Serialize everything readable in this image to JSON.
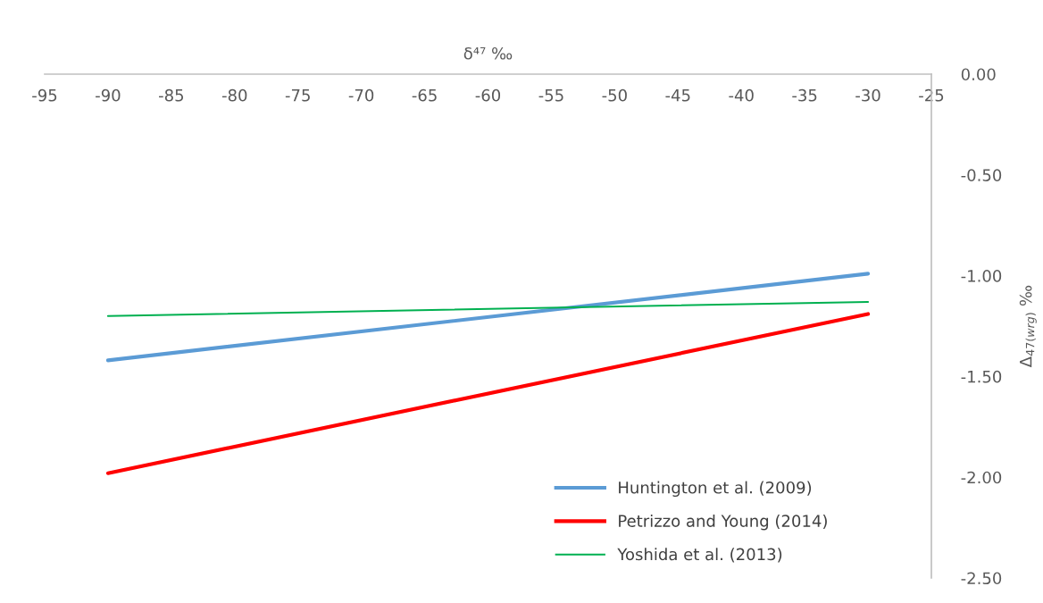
{
  "chart_data": {
    "type": "line",
    "xlabel": "δ⁴⁷ ‰",
    "ylabel": "Δ$_{47(wrg)}$ ‰",
    "xlim": [
      -95,
      -25
    ],
    "xticks": [
      -95,
      -90,
      -85,
      -80,
      -75,
      -70,
      -65,
      -60,
      -55,
      -50,
      -45,
      -40,
      -35,
      -30,
      -25
    ],
    "ylim": [
      -2.5,
      0
    ],
    "yticks": [
      {
        "value": 0,
        "label": "0.00"
      },
      {
        "value": -0.5,
        "label": "-0.50"
      },
      {
        "value": -1,
        "label": "-1.00"
      },
      {
        "value": -1.5,
        "label": "-1.50"
      },
      {
        "value": -2,
        "label": "-2.00"
      },
      {
        "value": -2.5,
        "label": "-2.50"
      }
    ],
    "x": [
      -90,
      -30
    ],
    "series": [
      {
        "name": "Huntington et al. (2009)",
        "color": "#5b9bd5",
        "values": [
          -1.42,
          -0.99
        ]
      },
      {
        "name": "Petrizzo and Young (2014)",
        "color": "#ff0000",
        "values": [
          -1.98,
          -1.19
        ]
      },
      {
        "name": "Yoshida et al. (2013)",
        "color": "#00b050",
        "values": [
          -1.2,
          -1.13
        ]
      }
    ],
    "legend": "bottom right",
    "grid": false,
    "marker": "none",
    "line_style": "solid"
  }
}
